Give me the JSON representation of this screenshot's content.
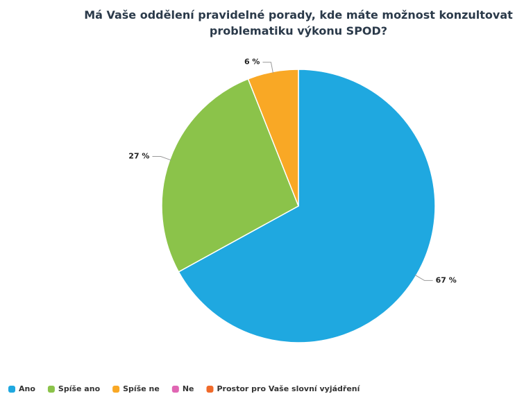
{
  "chart_data": {
    "type": "pie",
    "title": "Má Vaše oddělení pravidelné porady, kde máte možnost konzultovat problematiku výkonu SPOD?",
    "categories": [
      "Ano",
      "Spíše ano",
      "Spíše ne",
      "Ne",
      "Prostor pro Vaše slovní vyjádření"
    ],
    "values": [
      67,
      27,
      6,
      0,
      0
    ],
    "value_labels": [
      "67 %",
      "27 %",
      "6 %",
      null,
      null
    ],
    "colors": [
      "#1fa8e0",
      "#8bc34a",
      "#f9a825",
      "#e066b3",
      "#f06a2a"
    ],
    "legend": "bottom"
  }
}
